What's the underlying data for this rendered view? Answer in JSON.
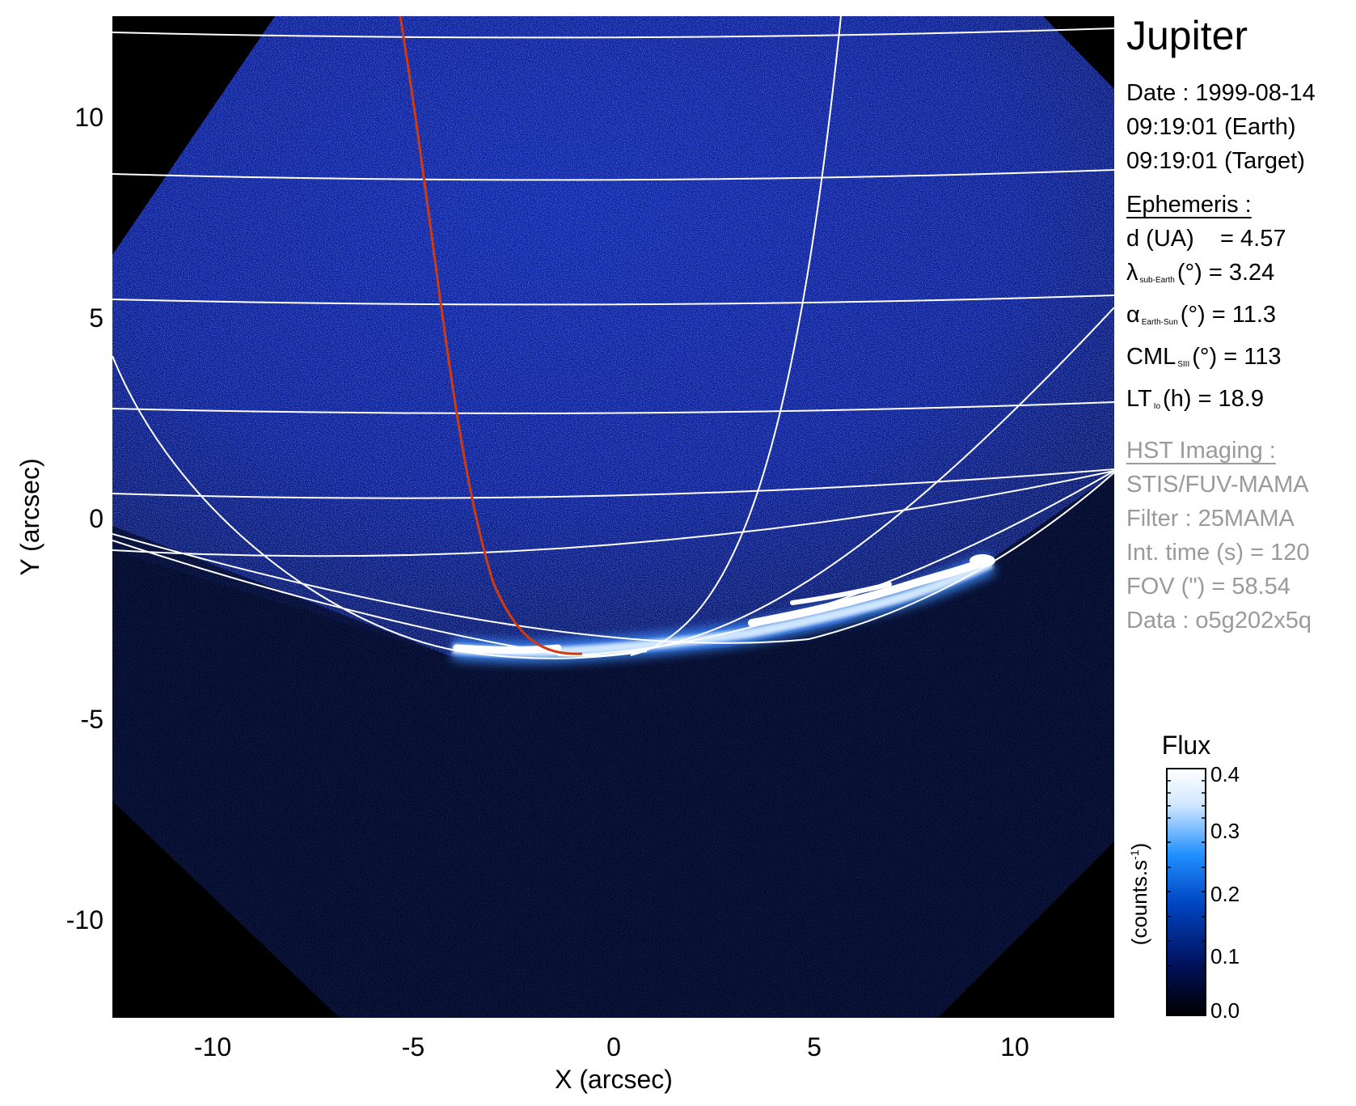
{
  "figure": {
    "target": "Jupiter",
    "date_line": "Date : 1999-08-14",
    "time_earth": "09:19:01 (Earth)",
    "time_target": "09:19:01 (Target)"
  },
  "ephemeris": {
    "header": "Ephemeris :",
    "d_label": "d (UA)",
    "d_value": "= 4.57",
    "lat_symbol": "λ",
    "lat_sub": "sub-Earth",
    "lat_value": "(°) = 3.24",
    "phase_symbol": "α",
    "phase_sub": "Earth-Sun",
    "phase_value": "(°) = 11.3",
    "cml_label": "CML",
    "cml_sub": "SIII",
    "cml_value": "(°) = 113",
    "lt_label": "LT",
    "lt_sub": "Io",
    "lt_value": "(h) = 18.9"
  },
  "hst": {
    "header": "HST Imaging :",
    "instrument": "STIS/FUV-MAMA",
    "filter": "Filter : 25MAMA",
    "int_time": "Int. time (s) = 120",
    "fov": "FOV (\") = 58.54",
    "data": "Data : o5g202x5q"
  },
  "axes": {
    "xlabel": "X (arcsec)",
    "ylabel": "Y (arcsec)",
    "x_ticks": [
      "-10",
      "-5",
      "0",
      "5",
      "10"
    ],
    "y_ticks": [
      "10",
      "5",
      "0",
      "-5",
      "-10"
    ],
    "xlim": [
      -12.4,
      12.4
    ],
    "ylim": [
      -12.4,
      12.4
    ]
  },
  "colorbar": {
    "title": "Flux",
    "unit_label": "(counts.s",
    "unit_exp": "-1",
    "unit_close": ")",
    "ticks": [
      "0.4",
      "0.3",
      "0.2",
      "0.1",
      "0.0"
    ],
    "range": [
      0.0,
      0.4
    ],
    "colors": [
      "#000000",
      "#00105a",
      "#0044c0",
      "#1f8fff",
      "#cfe6ff",
      "#ffffff"
    ]
  },
  "colors": {
    "sky_background": "#0a1e9e",
    "grid": "#ffffff",
    "io_footprint": "#d03a10",
    "aurora": "#ffffff"
  }
}
